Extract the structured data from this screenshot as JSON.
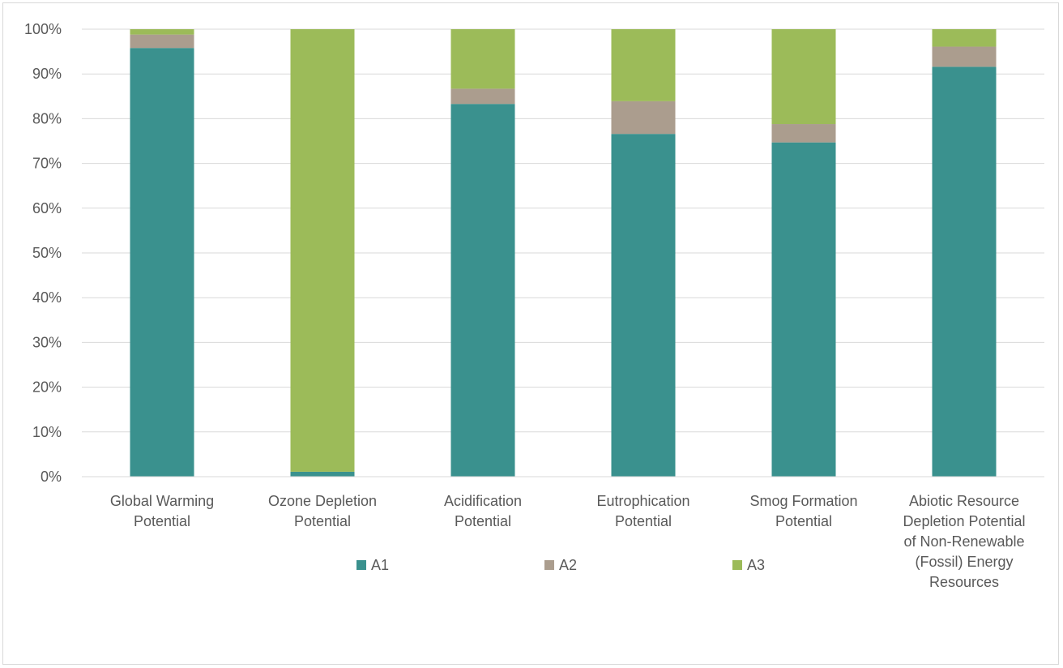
{
  "chart_data": {
    "type": "bar",
    "stacked": true,
    "categories": [
      [
        "Global Warming",
        "Potential"
      ],
      [
        "Ozone Depletion",
        "Potential"
      ],
      [
        "Acidification",
        "Potential"
      ],
      [
        "Eutrophication",
        "Potential"
      ],
      [
        "Smog Formation",
        "Potential"
      ],
      [
        "Abiotic Resource",
        "Depletion Potential",
        "of Non-Renewable",
        "(Fossil) Energy",
        "Resources"
      ]
    ],
    "series": [
      {
        "name": "A1",
        "color": "#3a918e",
        "values": [
          95.8,
          1.1,
          83.3,
          76.6,
          74.7,
          91.6
        ]
      },
      {
        "name": "A2",
        "color": "#ab9d8e",
        "values": [
          3.0,
          0.0,
          3.4,
          7.3,
          4.1,
          4.5
        ]
      },
      {
        "name": "A3",
        "color": "#9cbb59",
        "values": [
          1.2,
          98.9,
          13.3,
          16.1,
          21.2,
          3.9
        ]
      }
    ],
    "yticks": [
      "0%",
      "10%",
      "20%",
      "30%",
      "40%",
      "50%",
      "60%",
      "70%",
      "80%",
      "90%",
      "100%"
    ],
    "ylim": [
      0,
      100
    ],
    "grid": true,
    "legend": "bottom",
    "title": "",
    "xlabel": "",
    "ylabel": ""
  }
}
